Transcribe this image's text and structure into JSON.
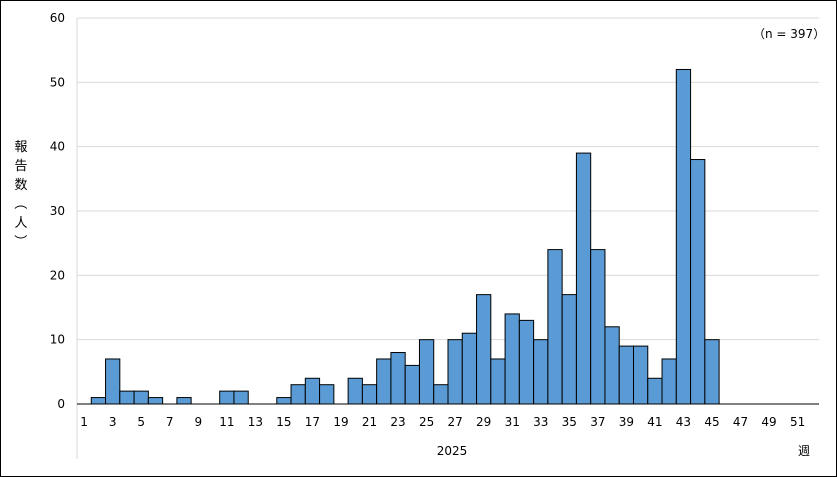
{
  "chart_data": {
    "type": "bar",
    "x": [
      1,
      2,
      3,
      4,
      5,
      6,
      7,
      8,
      9,
      10,
      11,
      12,
      13,
      14,
      15,
      16,
      17,
      18,
      19,
      20,
      21,
      22,
      23,
      24,
      25,
      26,
      27,
      28,
      29,
      30,
      31,
      32,
      33,
      34,
      35,
      36,
      37,
      38,
      39,
      40,
      41,
      42,
      43,
      44,
      45,
      46,
      47,
      48,
      49,
      50,
      51,
      52
    ],
    "values": [
      0,
      1,
      7,
      2,
      2,
      1,
      0,
      1,
      0,
      0,
      2,
      2,
      0,
      0,
      1,
      3,
      4,
      3,
      0,
      4,
      3,
      7,
      8,
      6,
      10,
      3,
      10,
      11,
      17,
      7,
      14,
      13,
      10,
      24,
      17,
      39,
      24,
      12,
      9,
      9,
      4,
      7,
      52,
      38,
      10,
      0,
      0,
      0,
      0,
      0,
      0,
      0
    ],
    "x_tick_labels": [
      "1",
      "3",
      "5",
      "7",
      "9",
      "11",
      "13",
      "15",
      "17",
      "19",
      "21",
      "23",
      "25",
      "27",
      "29",
      "31",
      "33",
      "35",
      "37",
      "39",
      "41",
      "43",
      "45",
      "47",
      "49",
      "51"
    ],
    "x_year_label": "2025",
    "x_unit_label": "週",
    "ylabel": "報告数（人）",
    "ylim": [
      0,
      60
    ],
    "y_ticks": [
      0,
      10,
      20,
      30,
      40,
      50,
      60
    ],
    "grid": true,
    "annotation": "（n = 397）",
    "bar_color": "#5b9bd5",
    "bar_edge_color": "#000000",
    "grid_color": "#d9d9d9"
  }
}
